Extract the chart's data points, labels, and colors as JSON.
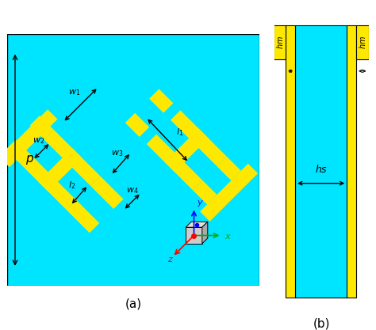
{
  "bg_color": "#ffffff",
  "cyan": "#00E5FF",
  "yellow": "#FFE800",
  "fig_width": 4.74,
  "fig_height": 4.17,
  "label_a": "(a)",
  "label_b": "(b)"
}
